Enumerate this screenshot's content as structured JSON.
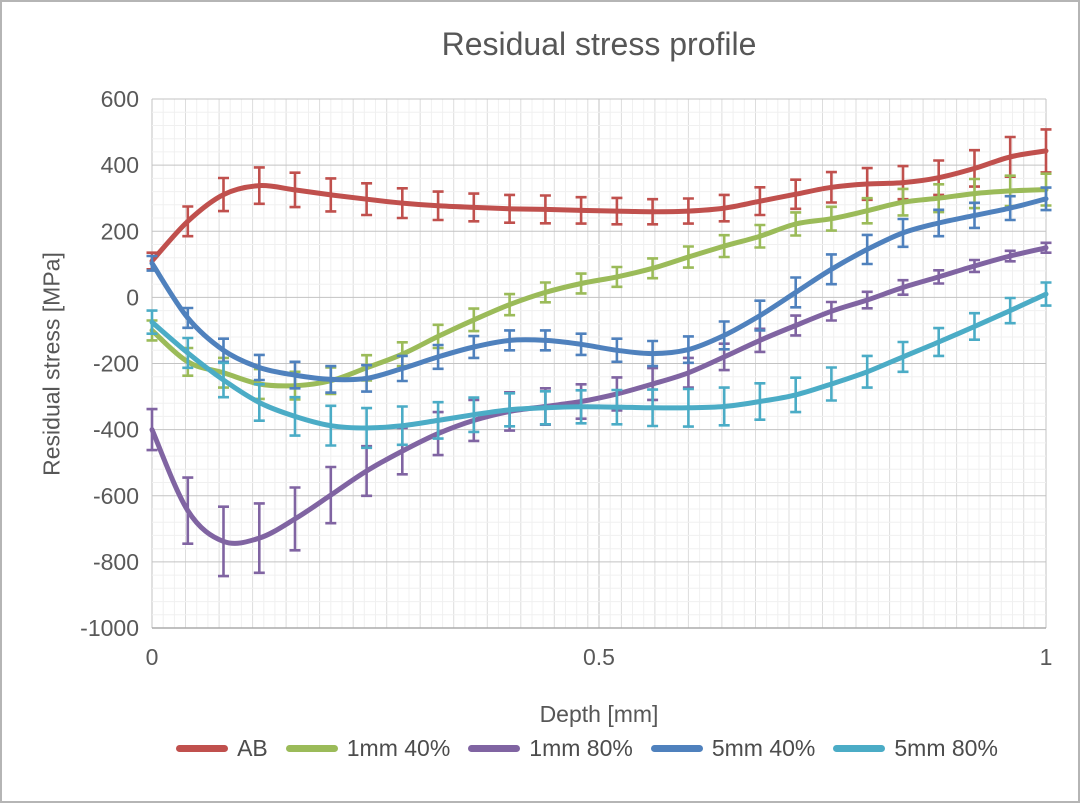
{
  "chart_data": {
    "type": "line",
    "title": "Residual stress profile",
    "xlabel": "Depth [mm]",
    "ylabel": "Residual stress [MPa]",
    "xlim": [
      0,
      1
    ],
    "ylim": [
      -1000,
      600
    ],
    "x_ticks": [
      {
        "value": 0,
        "label": "0"
      },
      {
        "value": 0.5,
        "label": "0.5"
      },
      {
        "value": 1,
        "label": "1"
      }
    ],
    "y_ticks": [
      {
        "value": 600,
        "label": "600"
      },
      {
        "value": 400,
        "label": "400"
      },
      {
        "value": 200,
        "label": "200"
      },
      {
        "value": 0,
        "label": "0"
      },
      {
        "value": -200,
        "label": "-200"
      },
      {
        "value": -400,
        "label": "-400"
      },
      {
        "value": -600,
        "label": "-600"
      },
      {
        "value": -800,
        "label": "-800"
      },
      {
        "value": -1000,
        "label": "-1000"
      }
    ],
    "grid": {
      "y_minor_step": 40,
      "y_major_step": 200,
      "x_minor_step": 0.0125,
      "x_medium_every": 3
    },
    "legend_position": "bottom",
    "smooth_lines": true,
    "error_bars": true,
    "x": [
      0,
      0.04,
      0.08,
      0.12,
      0.16,
      0.2,
      0.24,
      0.28,
      0.32,
      0.36,
      0.4,
      0.44,
      0.48,
      0.52,
      0.56,
      0.6,
      0.64,
      0.68,
      0.72,
      0.76,
      0.8,
      0.84,
      0.88,
      0.92,
      0.96,
      1.0
    ],
    "series": [
      {
        "name": "AB",
        "color": "#C0504D",
        "values": [
          110,
          230,
          311,
          338,
          325,
          310,
          297,
          285,
          277,
          272,
          268,
          266,
          263,
          261,
          259,
          261,
          270,
          291,
          312,
          333,
          343,
          347,
          362,
          390,
          425,
          443
        ],
        "errors": [
          25,
          45,
          50,
          55,
          52,
          50,
          48,
          45,
          43,
          42,
          42,
          42,
          40,
          40,
          38,
          38,
          40,
          42,
          44,
          46,
          48,
          50,
          52,
          55,
          60,
          65
        ]
      },
      {
        "name": "1mm 40%",
        "color": "#9BBB59",
        "values": [
          -100,
          -195,
          -228,
          -262,
          -267,
          -252,
          -213,
          -172,
          -118,
          -68,
          -22,
          15,
          42,
          62,
          88,
          122,
          155,
          185,
          222,
          238,
          262,
          288,
          300,
          314,
          322,
          326
        ],
        "errors": [
          30,
          42,
          45,
          45,
          42,
          40,
          38,
          36,
          35,
          34,
          32,
          30,
          30,
          30,
          30,
          32,
          33,
          34,
          35,
          36,
          38,
          40,
          42,
          44,
          46,
          48
        ]
      },
      {
        "name": "1mm 80%",
        "color": "#8064A2",
        "values": [
          -400,
          -645,
          -738,
          -728,
          -670,
          -598,
          -525,
          -465,
          -412,
          -372,
          -345,
          -330,
          -315,
          -292,
          -262,
          -228,
          -180,
          -130,
          -85,
          -42,
          -8,
          30,
          62,
          95,
          125,
          150
        ],
        "errors": [
          62,
          100,
          105,
          105,
          95,
          85,
          75,
          70,
          65,
          62,
          58,
          55,
          52,
          50,
          48,
          45,
          40,
          35,
          30,
          28,
          25,
          22,
          20,
          18,
          16,
          15
        ]
      },
      {
        "name": "5mm 40%",
        "color": "#4F81BD",
        "values": [
          103,
          -62,
          -160,
          -212,
          -235,
          -248,
          -245,
          -215,
          -180,
          -150,
          -130,
          -130,
          -142,
          -160,
          -170,
          -158,
          -115,
          -55,
          15,
          85,
          145,
          195,
          225,
          248,
          270,
          298
        ],
        "errors": [
          22,
          30,
          35,
          38,
          40,
          40,
          40,
          38,
          36,
          33,
          30,
          30,
          32,
          35,
          38,
          40,
          42,
          45,
          45,
          45,
          44,
          42,
          40,
          38,
          36,
          34
        ]
      },
      {
        "name": "5mm 80%",
        "color": "#4BACC6",
        "values": [
          -75,
          -168,
          -250,
          -318,
          -360,
          -388,
          -395,
          -388,
          -372,
          -355,
          -340,
          -334,
          -331,
          -332,
          -334,
          -334,
          -330,
          -315,
          -295,
          -262,
          -225,
          -180,
          -135,
          -88,
          -40,
          10
        ],
        "errors": [
          35,
          45,
          52,
          55,
          58,
          60,
          60,
          58,
          55,
          52,
          50,
          50,
          50,
          52,
          55,
          57,
          57,
          55,
          52,
          50,
          48,
          45,
          42,
          40,
          38,
          35
        ]
      }
    ]
  }
}
